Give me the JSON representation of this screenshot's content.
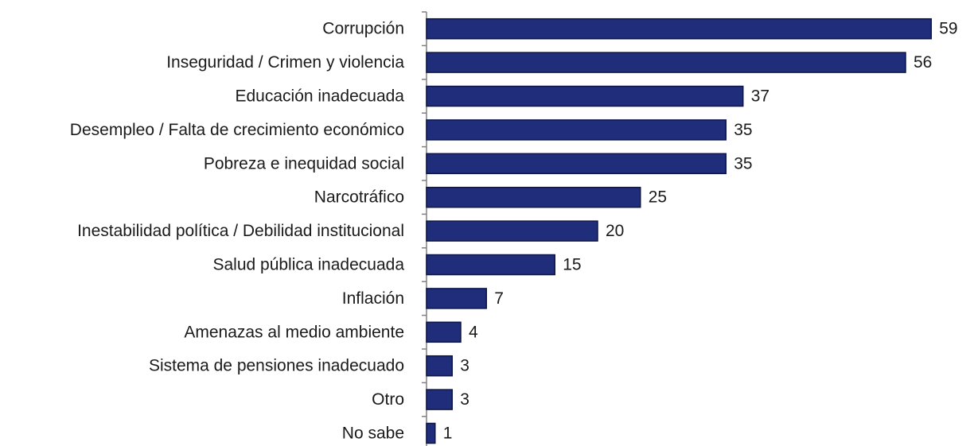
{
  "chart_data": {
    "type": "bar",
    "orientation": "horizontal",
    "categories": [
      "Corrupción",
      "Inseguridad / Crimen y violencia",
      "Educación inadecuada",
      "Desempleo / Falta de crecimiento económico",
      "Pobreza e inequidad social",
      "Narcotráfico",
      "Inestabilidad política / Debilidad institucional",
      "Salud pública inadecuada",
      "Inflación",
      "Amenazas al medio ambiente",
      "Sistema de pensiones inadecuado",
      "Otro",
      "No sabe"
    ],
    "values": [
      59,
      56,
      37,
      35,
      35,
      25,
      20,
      15,
      7,
      4,
      3,
      3,
      1
    ],
    "data_labels": [
      "59",
      "56",
      "37",
      "35",
      "35",
      "25",
      "20",
      "15",
      "7",
      "4",
      "3",
      "3",
      "1"
    ],
    "xlim": [
      0,
      59
    ],
    "grid": false,
    "legend": "none",
    "bar_color": "#1f2d7a",
    "bar_border_color": "#0c154a"
  }
}
